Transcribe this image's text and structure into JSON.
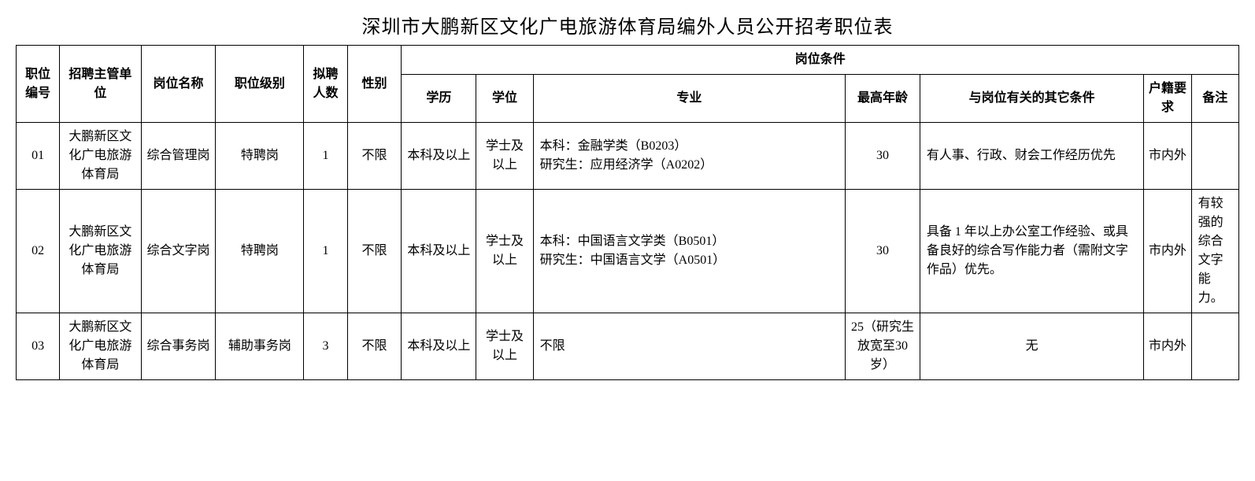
{
  "title": "深圳市大鹏新区文化广电旅游体育局编外人员公开招考职位表",
  "headers": {
    "id": "职位编号",
    "dept": "招聘主管单位",
    "name": "岗位名称",
    "level": "职位级别",
    "count": "拟聘人数",
    "gender": "性别",
    "group": "岗位条件",
    "edu": "学历",
    "degree": "学位",
    "major": "专业",
    "age": "最高年龄",
    "other": "与岗位有关的其它条件",
    "huji": "户籍要求",
    "note": "备注"
  },
  "rows": [
    {
      "id": "01",
      "dept": "大鹏新区文化广电旅游体育局",
      "name": "综合管理岗",
      "level": "特聘岗",
      "count": "1",
      "gender": "不限",
      "edu": "本科及以上",
      "degree": "学士及以上",
      "major": "本科：金融学类（B0203）\n研究生：应用经济学（A0202）",
      "age": "30",
      "other": "有人事、行政、财会工作经历优先",
      "huji": "市内外",
      "note": ""
    },
    {
      "id": "02",
      "dept": "大鹏新区文化广电旅游体育局",
      "name": "综合文字岗",
      "level": "特聘岗",
      "count": "1",
      "gender": "不限",
      "edu": "本科及以上",
      "degree": "学士及以上",
      "major": "本科：中国语言文学类（B0501）\n研究生：中国语言文学（A0501）",
      "age": "30",
      "other": "具备 1 年以上办公室工作经验、或具备良好的综合写作能力者（需附文字作品）优先。",
      "huji": "市内外",
      "note": "有较强的综合文字能力。"
    },
    {
      "id": "03",
      "dept": "大鹏新区文化广电旅游体育局",
      "name": "综合事务岗",
      "level": "辅助事务岗",
      "count": "3",
      "gender": "不限",
      "edu": "本科及以上",
      "degree": "学士及以上",
      "major": "不限",
      "age": "25（研究生放宽至30岁）",
      "other": "无",
      "huji": "市内外",
      "note": ""
    }
  ]
}
